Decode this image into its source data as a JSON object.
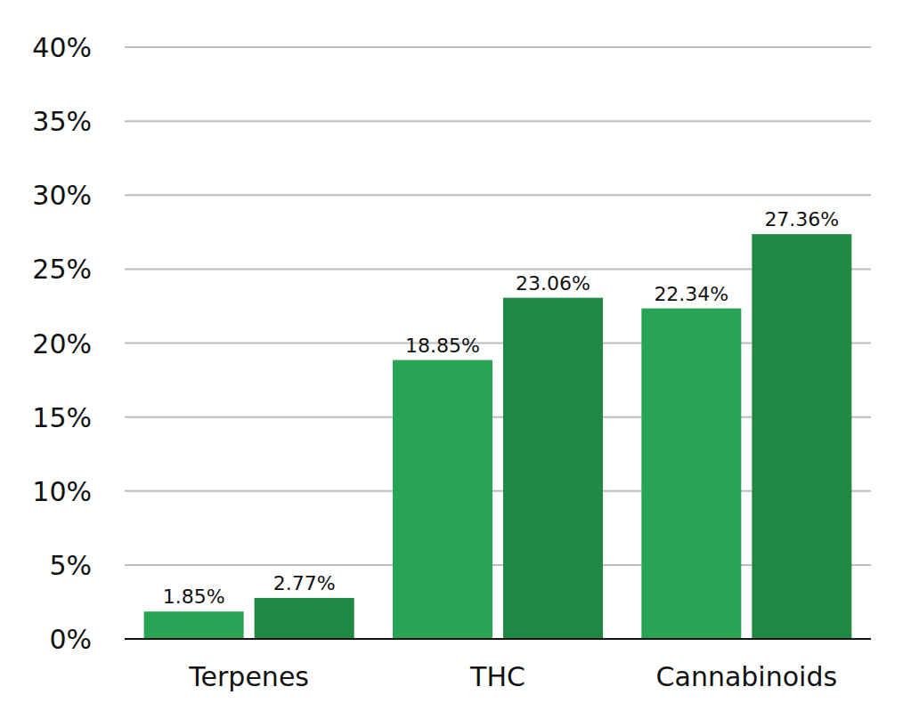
{
  "chart_data": {
    "type": "bar",
    "categories": [
      "Terpenes",
      "THC",
      "Cannabinoids"
    ],
    "series": [
      {
        "color": "#27a555",
        "values": [
          1.85,
          18.85,
          22.34
        ],
        "value_labels": [
          "1.85%",
          "18.85%",
          "22.34%"
        ]
      },
      {
        "color": "#218844",
        "values": [
          2.77,
          23.06,
          27.36
        ],
        "value_labels": [
          "2.77%",
          "23.06%",
          "27.36%"
        ]
      }
    ],
    "ylim": [
      0,
      40
    ],
    "yticks": [
      {
        "value": 0,
        "label": "0%"
      },
      {
        "value": 5,
        "label": "5%"
      },
      {
        "value": 10,
        "label": "10%"
      },
      {
        "value": 15,
        "label": "15%"
      },
      {
        "value": 20,
        "label": "20%"
      },
      {
        "value": 25,
        "label": "25%"
      },
      {
        "value": 30,
        "label": "30%"
      },
      {
        "value": 35,
        "label": "35%"
      },
      {
        "value": 40,
        "label": "40%"
      }
    ],
    "grid": true,
    "data_labels": true
  }
}
